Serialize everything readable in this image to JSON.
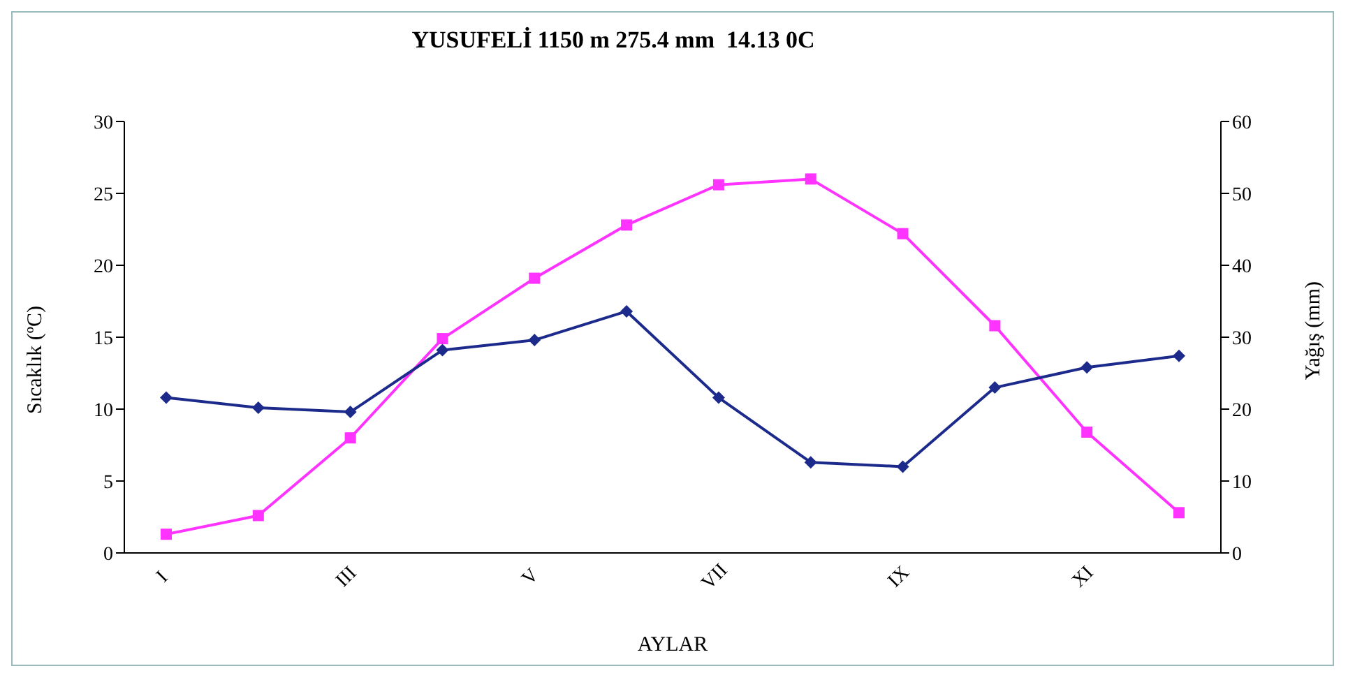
{
  "chart_data": {
    "type": "line",
    "title": "YUSUFELİ 1150 m 275.4 mm  14.13 0C",
    "xlabel": "AYLAR",
    "ylabel": "Sıcaklık (ºC)",
    "y2label": "Yağış (mm)",
    "categories": [
      "I",
      null,
      "III",
      null,
      "V",
      null,
      "VII",
      null,
      "IX",
      null,
      "XI",
      null
    ],
    "series": [
      {
        "color": "#ff33ff",
        "marker": "square",
        "values": [
          1.3,
          2.6,
          8.0,
          14.9,
          19.1,
          22.8,
          25.6,
          26.0,
          22.2,
          15.8,
          8.4,
          2.8
        ]
      },
      {
        "color": "#1c2a8c",
        "marker": "diamond",
        "axis": "y2",
        "values": [
          21.6,
          20.2,
          19.6,
          28.2,
          29.6,
          33.6,
          21.6,
          12.6,
          12.0,
          23.0,
          25.8,
          27.4
        ]
      }
    ],
    "ylim": [
      0,
      30
    ],
    "yticks": [
      0,
      5,
      10,
      15,
      20,
      25,
      30
    ],
    "y2lim": [
      0,
      60
    ],
    "y2ticks": [
      0,
      10,
      20,
      30,
      40,
      50,
      60
    ],
    "grid": false
  }
}
